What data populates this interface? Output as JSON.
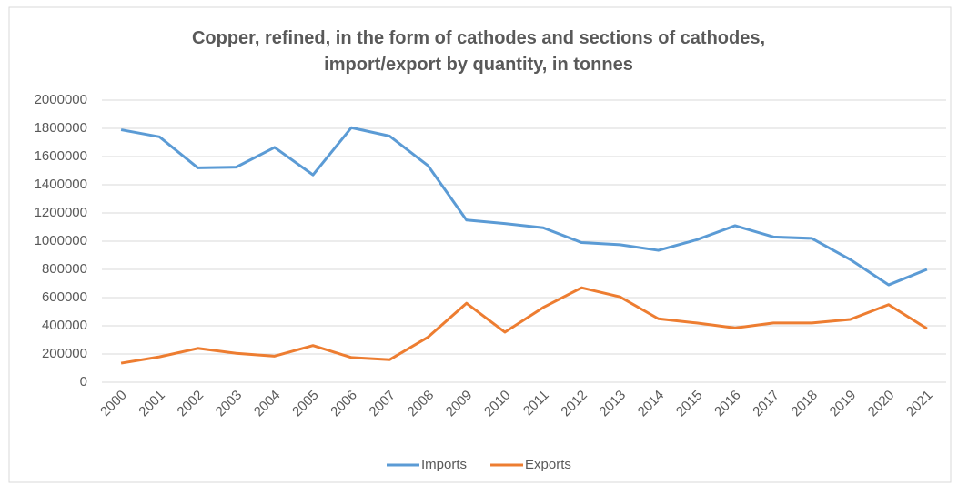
{
  "chart_data": {
    "type": "line",
    "title": "Copper, refined, in the form of cathodes and sections of cathodes, import/export by quantity, in tonnes",
    "categories": [
      "2000",
      "2001",
      "2002",
      "2003",
      "2004",
      "2005",
      "2006",
      "2007",
      "2008",
      "2009",
      "2010",
      "2011",
      "2012",
      "2013",
      "2014",
      "2015",
      "2016",
      "2017",
      "2018",
      "2019",
      "2020",
      "2021"
    ],
    "series": [
      {
        "name": "Imports",
        "color": "#5b9bd5",
        "values": [
          1790000,
          1740000,
          1520000,
          1525000,
          1665000,
          1470000,
          1805000,
          1745000,
          1535000,
          1150000,
          1125000,
          1095000,
          990000,
          975000,
          935000,
          1010000,
          1110000,
          1030000,
          1020000,
          870000,
          690000,
          800000
        ]
      },
      {
        "name": "Exports",
        "color": "#ed7d31",
        "values": [
          135000,
          180000,
          240000,
          205000,
          185000,
          260000,
          175000,
          160000,
          320000,
          560000,
          355000,
          530000,
          670000,
          605000,
          450000,
          420000,
          385000,
          420000,
          420000,
          445000,
          550000,
          380000
        ]
      }
    ],
    "ylim": [
      0,
      2000000
    ],
    "yticks": [
      0,
      200000,
      400000,
      600000,
      800000,
      1000000,
      1200000,
      1400000,
      1600000,
      1800000,
      2000000
    ],
    "grid": true,
    "legend": "bottom"
  }
}
